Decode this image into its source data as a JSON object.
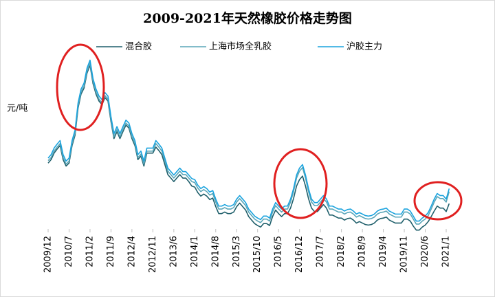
{
  "chart_data": {
    "type": "line",
    "title": "2009-2021年天然橡胶价格走势图",
    "y_label": "元/吨",
    "categories": [
      "2009/12",
      null,
      null,
      null,
      null,
      null,
      null,
      "2010/7",
      null,
      null,
      null,
      null,
      null,
      null,
      "2011/2",
      null,
      null,
      null,
      null,
      null,
      null,
      "2011/9",
      null,
      null,
      null,
      null,
      null,
      null,
      "2012/4",
      null,
      null,
      null,
      null,
      null,
      null,
      "2012/11",
      null,
      null,
      null,
      null,
      null,
      null,
      "2013/6",
      null,
      null,
      null,
      null,
      null,
      null,
      "2014/1",
      null,
      null,
      null,
      null,
      null,
      null,
      "2014/8",
      null,
      null,
      null,
      null,
      null,
      null,
      "2015/3",
      null,
      null,
      null,
      null,
      null,
      null,
      "2015/10",
      null,
      null,
      null,
      null,
      null,
      null,
      "2016/5",
      null,
      null,
      null,
      null,
      null,
      null,
      "2016/12",
      null,
      null,
      null,
      null,
      null,
      null,
      "2017/7",
      null,
      null,
      null,
      null,
      null,
      null,
      "2018/2",
      null,
      null,
      null,
      null,
      null,
      null,
      "2018/9",
      null,
      null,
      null,
      null,
      null,
      null,
      "2019/4",
      null,
      null,
      null,
      null,
      null,
      null,
      "2019/11",
      null,
      null,
      null,
      null,
      null,
      null,
      "2020/6",
      null,
      null,
      null,
      null,
      null,
      null,
      "2021/1",
      null
    ],
    "series": [
      {
        "name": "混合胶",
        "color": "#1f5f6b",
        "values": [
          22000,
          22700,
          24000,
          24800,
          25500,
          22700,
          21400,
          22000,
          25500,
          27600,
          33000,
          35800,
          37000,
          40000,
          41600,
          37900,
          35800,
          34400,
          33700,
          35100,
          34400,
          30300,
          26900,
          28300,
          26900,
          28300,
          29600,
          29000,
          26900,
          25500,
          22700,
          23400,
          21400,
          24000,
          24000,
          24000,
          25200,
          24500,
          23700,
          21700,
          19700,
          19000,
          18300,
          19000,
          19700,
          19000,
          19000,
          18300,
          17400,
          17200,
          16100,
          15400,
          15800,
          15400,
          14700,
          15000,
          13300,
          11900,
          11900,
          12200,
          11900,
          11900,
          12200,
          13300,
          14000,
          13300,
          12600,
          11300,
          10600,
          9900,
          9500,
          9200,
          9900,
          9900,
          9500,
          11300,
          12600,
          11900,
          11300,
          11900,
          11900,
          13000,
          14900,
          17400,
          18700,
          19400,
          17400,
          14900,
          13000,
          12300,
          12300,
          13000,
          13700,
          13000,
          11600,
          11600,
          11300,
          11000,
          11000,
          10600,
          10900,
          11000,
          10600,
          10000,
          10300,
          10000,
          9700,
          9600,
          9700,
          10000,
          10600,
          10900,
          11000,
          11200,
          10600,
          10300,
          10000,
          10000,
          10000,
          10800,
          10800,
          10400,
          9400,
          8600,
          8600,
          9200,
          9600,
          10300,
          11300,
          12400,
          13400,
          13000,
          13000,
          12300,
          13900
        ]
      },
      {
        "name": "上海市场全乳胶",
        "color": "#5aa6b8",
        "values": [
          22500,
          23100,
          24400,
          25200,
          25900,
          23100,
          21800,
          22400,
          25900,
          28000,
          33400,
          36200,
          37400,
          40400,
          42000,
          38300,
          36200,
          34800,
          34100,
          35500,
          34800,
          30700,
          27300,
          28700,
          27300,
          28700,
          30000,
          29400,
          27300,
          25900,
          23100,
          23800,
          21800,
          24400,
          24400,
          24400,
          25900,
          25200,
          24400,
          22400,
          20400,
          19700,
          19000,
          19700,
          20400,
          19700,
          19700,
          19000,
          18300,
          18100,
          17000,
          16300,
          16700,
          16300,
          15600,
          15900,
          14200,
          12800,
          12800,
          13100,
          12800,
          12800,
          13100,
          14200,
          14900,
          14200,
          13500,
          12200,
          11500,
          10800,
          10400,
          10100,
          10800,
          10800,
          10400,
          12200,
          13500,
          12800,
          12200,
          12800,
          12800,
          14200,
          16300,
          19000,
          20400,
          21100,
          19000,
          16300,
          14200,
          13500,
          13500,
          14200,
          14900,
          14200,
          12800,
          12800,
          12500,
          12200,
          12200,
          11800,
          12100,
          12200,
          11800,
          11200,
          11500,
          11200,
          10900,
          10800,
          10900,
          11200,
          11800,
          12100,
          12200,
          12400,
          11800,
          11500,
          11200,
          11200,
          11200,
          12200,
          12200,
          11800,
          10800,
          9800,
          9800,
          10400,
          10800,
          11500,
          12800,
          14200,
          15300,
          14900,
          14900,
          14200,
          16300
        ]
      },
      {
        "name": "沪胶主力",
        "color": "#1aa3de",
        "values": [
          23000,
          23700,
          25000,
          25800,
          26500,
          23700,
          22400,
          23000,
          26500,
          28600,
          34000,
          36800,
          38000,
          41000,
          42600,
          38900,
          36800,
          35400,
          34700,
          36100,
          35400,
          31300,
          27900,
          29300,
          27900,
          29300,
          30600,
          30000,
          27900,
          26500,
          23700,
          24400,
          22400,
          25000,
          25000,
          25000,
          26500,
          25800,
          25000,
          23000,
          21000,
          20300,
          19600,
          20300,
          21000,
          20300,
          20300,
          19600,
          18900,
          18700,
          17600,
          16900,
          17300,
          16900,
          16200,
          16500,
          14800,
          13400,
          13400,
          13700,
          13400,
          13400,
          13700,
          14800,
          15500,
          14800,
          14100,
          12800,
          12100,
          11400,
          11000,
          10700,
          11400,
          11400,
          11000,
          12800,
          14100,
          13400,
          12800,
          13400,
          13400,
          14800,
          16900,
          19600,
          21000,
          21700,
          19600,
          16900,
          14800,
          14100,
          14100,
          14800,
          15500,
          14800,
          13400,
          13400,
          13100,
          12800,
          12800,
          12400,
          12700,
          12800,
          12400,
          11800,
          12100,
          11800,
          11500,
          11400,
          11500,
          11800,
          12400,
          12700,
          12800,
          13000,
          12400,
          12100,
          11800,
          11800,
          11800,
          12800,
          12800,
          12400,
          11400,
          10400,
          10400,
          11000,
          11400,
          12100,
          13400,
          14800,
          15900,
          15500,
          15500,
          14800,
          16900
        ]
      }
    ],
    "ylim": [
      8000,
      45000
    ],
    "legend": "top",
    "grid": false
  }
}
